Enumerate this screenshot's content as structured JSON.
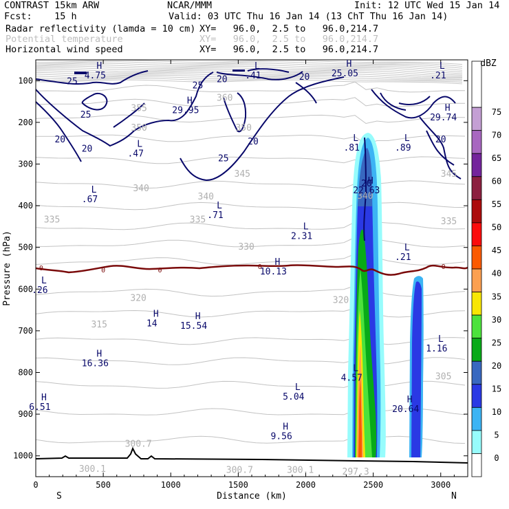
{
  "header": {
    "model": "CONTRAST 15km ARW",
    "org": "NCAR/MMM",
    "init": "Init: 12 UTC Wed 15 Jan 14",
    "fcst": "Fcst:    15 h",
    "valid": "Valid: 03 UTC Thu 16 Jan 14 (13 ChT Thu 16 Jan 14)",
    "fields": [
      {
        "name": "Radar reflectivity (lamda = 10 cm)",
        "xy": "XY=   96.0,  2.5 to   96.0,214.7",
        "color": "#000000"
      },
      {
        "name": "Potential temperature",
        "xy": "XY=   96.0,  2.5 to   96.0,214.7",
        "color": "#bdbdbd"
      },
      {
        "name": "Horizontal wind speed",
        "xy": "XY=   96.0,  2.5 to   96.0,214.7",
        "color": "#000000"
      }
    ]
  },
  "chart_data": {
    "type": "heatmap",
    "xlabel": "Distance (km)",
    "ylabel": "Pressure (hPa)",
    "xlim": [
      0,
      3200
    ],
    "ylim": [
      1050,
      50
    ],
    "x_ticks": [
      0,
      500,
      1000,
      1500,
      2000,
      2500,
      3000
    ],
    "x_tick_labels": [
      "0",
      "500",
      "1000",
      "1500",
      "2000",
      "2500",
      "3000"
    ],
    "y_ticks": [
      100,
      200,
      300,
      400,
      500,
      600,
      700,
      800,
      900,
      1000
    ],
    "y_tick_labels": [
      "100",
      "200",
      "300",
      "400",
      "500",
      "600",
      "700",
      "800",
      "900",
      "1000"
    ],
    "x_end_labels": {
      "left": "S",
      "right": "N"
    },
    "colorbar": {
      "unit": "dBZ",
      "levels": [
        "0",
        "5",
        "10",
        "15",
        "20",
        "25",
        "30",
        "35",
        "40",
        "45",
        "50",
        "55",
        "60",
        "65",
        "70",
        "75"
      ],
      "colors": [
        "#ffffff",
        "#97fcfc",
        "#3cb4f4",
        "#2a39e4",
        "#3868c0",
        "#08aa18",
        "#4ce23c",
        "#f8e604",
        "#fca050",
        "#fb5a00",
        "#fb0c0c",
        "#ac0c0c",
        "#8c2040",
        "#74249c",
        "#a867c0",
        "#c49fd4"
      ]
    },
    "wind_contours": [
      {
        "label": "25",
        "x": 270,
        "p": 100
      },
      {
        "label": "20",
        "x": 1380,
        "p": 95
      },
      {
        "label": "20",
        "x": 1990,
        "p": 90
      },
      {
        "label": "25",
        "x": 1200,
        "p": 110
      },
      {
        "label": "25",
        "x": 370,
        "p": 180
      },
      {
        "label": "20",
        "x": 180,
        "p": 240
      },
      {
        "label": "20",
        "x": 380,
        "p": 262
      },
      {
        "label": "25",
        "x": 1390,
        "p": 285
      },
      {
        "label": "20",
        "x": 1610,
        "p": 245
      },
      {
        "label": "20",
        "x": 3000,
        "p": 240
      },
      {
        "label": "20",
        "x": 2450,
        "p": 345
      }
    ],
    "theta_labels": [
      {
        "label": "355",
        "x": 765,
        "p": 165
      },
      {
        "label": "350",
        "x": 765,
        "p": 212
      },
      {
        "label": "360",
        "x": 1400,
        "p": 140
      },
      {
        "label": "350",
        "x": 1540,
        "p": 212
      },
      {
        "label": "345",
        "x": 1530,
        "p": 322
      },
      {
        "label": "340",
        "x": 780,
        "p": 357
      },
      {
        "label": "340",
        "x": 1260,
        "p": 377
      },
      {
        "label": "340",
        "x": 2440,
        "p": 375
      },
      {
        "label": "335",
        "x": 120,
        "p": 432
      },
      {
        "label": "335",
        "x": 1200,
        "p": 432
      },
      {
        "label": "335",
        "x": 3060,
        "p": 436
      },
      {
        "label": "330",
        "x": 1560,
        "p": 497
      },
      {
        "label": "345",
        "x": 3060,
        "p": 322
      },
      {
        "label": "320",
        "x": 760,
        "p": 620
      },
      {
        "label": "320",
        "x": 2260,
        "p": 625
      },
      {
        "label": "315",
        "x": 470,
        "p": 684
      },
      {
        "label": "305",
        "x": 3020,
        "p": 808
      },
      {
        "label": "300.1",
        "x": 420,
        "p": 1030
      },
      {
        "label": "300.7",
        "x": 760,
        "p": 970
      },
      {
        "label": "300.7",
        "x": 1510,
        "p": 1033
      },
      {
        "label": "300.1",
        "x": 1960,
        "p": 1033
      },
      {
        "label": "297.3",
        "x": 2370,
        "p": 1037
      }
    ],
    "zero_labels": [
      {
        "label": "0",
        "x": 40,
        "p": 548
      },
      {
        "label": "0",
        "x": 500,
        "p": 553
      },
      {
        "label": "0",
        "x": 920,
        "p": 553
      },
      {
        "label": "0",
        "x": 1660,
        "p": 545
      },
      {
        "label": "0",
        "x": 3020,
        "p": 545
      }
    ],
    "extrema": [
      {
        "type": "L",
        "value": ".41",
        "x": 1610,
        "p": 75
      },
      {
        "type": "L",
        "value": ".21",
        "x": 2980,
        "p": 75
      },
      {
        "type": "H",
        "value": "4.75",
        "x": 440,
        "p": 75
      },
      {
        "type": "H",
        "value": "25.05",
        "x": 2290,
        "p": 70
      },
      {
        "type": "H",
        "value": "29.74",
        "x": 3020,
        "p": 175
      },
      {
        "type": "H",
        "value": "29.95",
        "x": 1110,
        "p": 158
      },
      {
        "type": "L",
        "value": ".47",
        "x": 740,
        "p": 262
      },
      {
        "type": "L",
        "value": ".81",
        "x": 2340,
        "p": 248
      },
      {
        "type": "L",
        "value": ".89",
        "x": 2720,
        "p": 248
      },
      {
        "type": "H",
        "value": "22.63",
        "x": 2450,
        "p": 350
      },
      {
        "type": "L",
        "value": ".67",
        "x": 400,
        "p": 372
      },
      {
        "type": "L",
        "value": ".71",
        "x": 1330,
        "p": 410
      },
      {
        "type": "L",
        "value": "2.31",
        "x": 1970,
        "p": 460
      },
      {
        "type": "L",
        "value": ".21",
        "x": 2720,
        "p": 510
      },
      {
        "type": "H",
        "value": "10.13",
        "x": 1760,
        "p": 545
      },
      {
        "type": "L",
        "value": ".26",
        "x": 30,
        "p": 590
      },
      {
        "type": "H",
        "value": "14",
        "x": 860,
        "p": 670
      },
      {
        "type": "H",
        "value": "15.54",
        "x": 1170,
        "p": 675
      },
      {
        "type": "L",
        "value": "1.16",
        "x": 2970,
        "p": 730
      },
      {
        "type": "H",
        "value": "16.36",
        "x": 440,
        "p": 765
      },
      {
        "type": "L",
        "value": "4.57",
        "x": 2340,
        "p": 800
      },
      {
        "type": "L",
        "value": "5.04",
        "x": 1910,
        "p": 845
      },
      {
        "type": "H",
        "value": "6.51",
        "x": 30,
        "p": 870
      },
      {
        "type": "H",
        "value": "20.64",
        "x": 2740,
        "p": 875
      },
      {
        "type": "H",
        "value": "9.56",
        "x": 1820,
        "p": 940
      }
    ]
  }
}
